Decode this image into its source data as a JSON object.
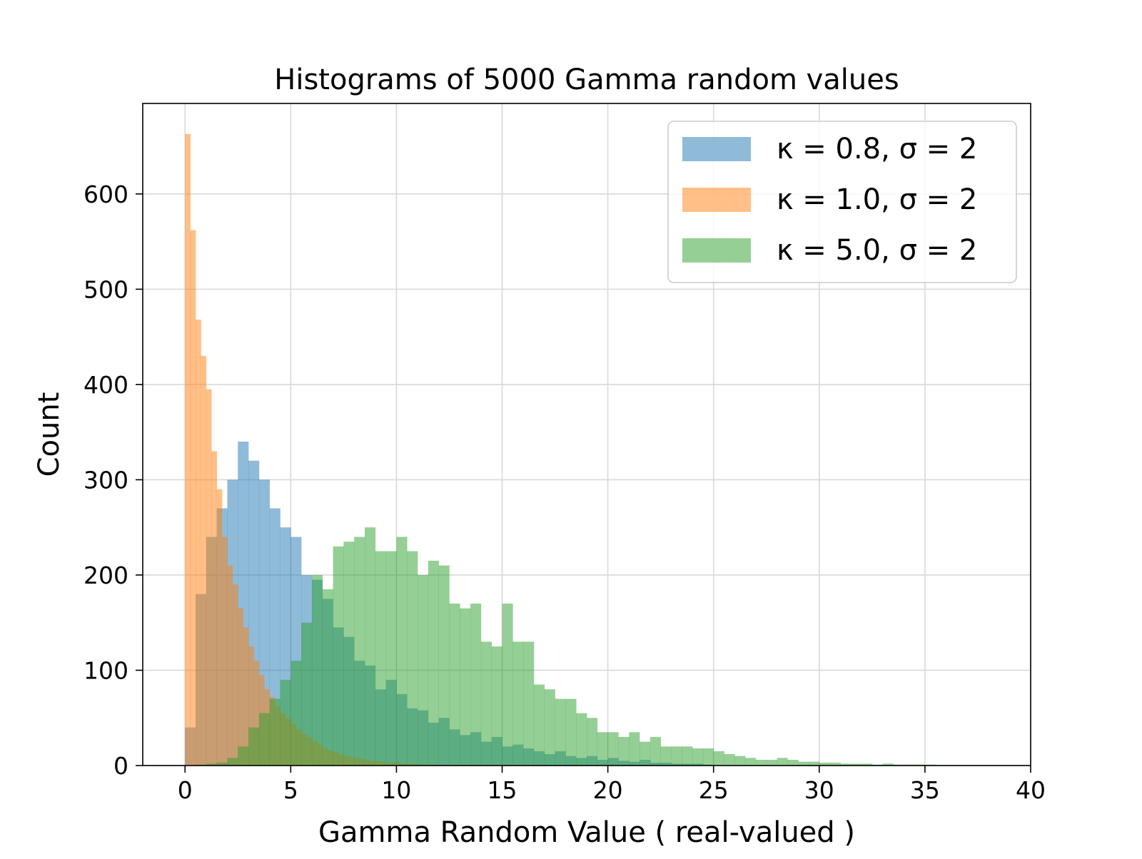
{
  "chart_data": {
    "type": "bar",
    "subtype": "histogram",
    "title": "Histograms of 5000 Gamma random values",
    "xlabel": "Gamma Random Value ( real-valued )",
    "ylabel": "Count",
    "xlim": [
      -2,
      40
    ],
    "ylim": [
      0,
      695
    ],
    "xticks": [
      0,
      5,
      10,
      15,
      20,
      25,
      30,
      35,
      40
    ],
    "yticks": [
      0,
      100,
      200,
      300,
      400,
      500,
      600
    ],
    "grid": true,
    "legend_position": "top-right",
    "series": [
      {
        "name": "κ = 0.8,  σ = 2",
        "color": "#1f77b4",
        "opacity": 0.5,
        "bin_start": 0.0,
        "bin_width": 0.5,
        "counts": [
          40,
          180,
          240,
          270,
          300,
          340,
          320,
          300,
          270,
          250,
          240,
          200,
          195,
          175,
          145,
          135,
          110,
          105,
          80,
          90,
          75,
          60,
          58,
          45,
          50,
          38,
          32,
          35,
          25,
          30,
          20,
          22,
          18,
          15,
          12,
          15,
          10,
          8,
          10,
          6,
          8,
          5,
          4,
          6,
          3,
          3,
          2,
          2,
          2,
          1
        ]
      },
      {
        "name": "κ = 1.0,  σ = 2",
        "color": "#ff7f0e",
        "opacity": 0.5,
        "bin_start": 0.0,
        "bin_width": 0.25,
        "counts": [
          663,
          562,
          468,
          430,
          395,
          330,
          290,
          240,
          210,
          190,
          165,
          145,
          125,
          110,
          95,
          80,
          72,
          62,
          55,
          50,
          44,
          38,
          33,
          30,
          26,
          22,
          18,
          16,
          14,
          12,
          10,
          9,
          8,
          7,
          6,
          5,
          5,
          4,
          3,
          3,
          3,
          2,
          2,
          2,
          1,
          1,
          1,
          1
        ]
      },
      {
        "name": "κ = 5.0,  σ = 2",
        "color": "#2ca02c",
        "opacity": 0.5,
        "bin_start": 0.5,
        "bin_width": 0.5,
        "counts": [
          1,
          2,
          3,
          8,
          20,
          40,
          55,
          70,
          90,
          110,
          150,
          200,
          185,
          230,
          235,
          240,
          250,
          225,
          225,
          240,
          225,
          200,
          215,
          210,
          170,
          165,
          170,
          130,
          125,
          170,
          130,
          130,
          85,
          80,
          70,
          70,
          55,
          50,
          35,
          35,
          30,
          35,
          25,
          30,
          20,
          20,
          20,
          18,
          18,
          15,
          12,
          10,
          8,
          6,
          6,
          8,
          6,
          4,
          4,
          3,
          3,
          2,
          2,
          2,
          1,
          2,
          1,
          1,
          1,
          1
        ]
      }
    ]
  }
}
